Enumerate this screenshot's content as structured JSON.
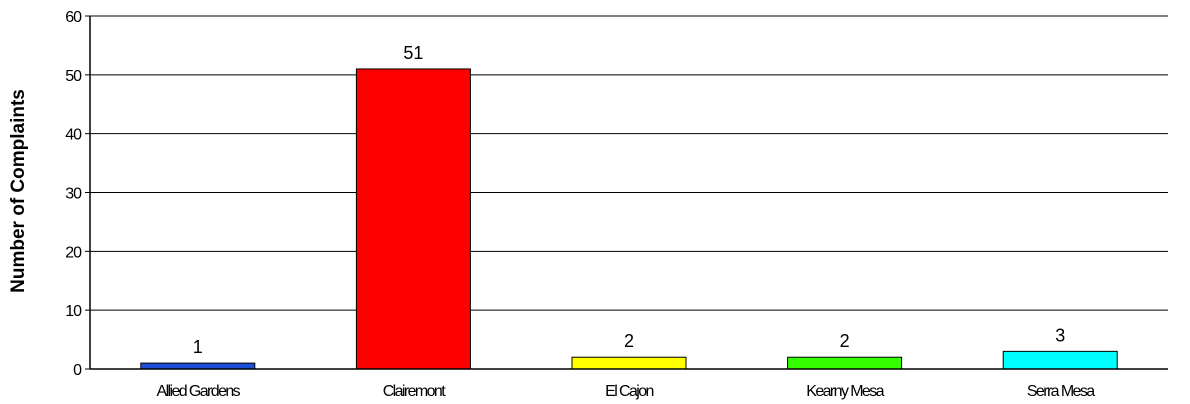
{
  "chart_data": {
    "type": "bar",
    "categories": [
      "Allied Gardens",
      "Clairemont",
      "El Cajon",
      "Kearny Mesa",
      "Serra Mesa"
    ],
    "values": [
      1,
      51,
      2,
      2,
      3
    ],
    "bar_colors": [
      "#1f4fd6",
      "#ff0000",
      "#ffff00",
      "#33ff00",
      "#00ffff"
    ],
    "ylabel": "Number of Complaints",
    "ylim": [
      0,
      60
    ],
    "yticks": [
      0,
      10,
      20,
      30,
      40,
      50,
      60
    ],
    "grid": true,
    "data_labels": true
  }
}
